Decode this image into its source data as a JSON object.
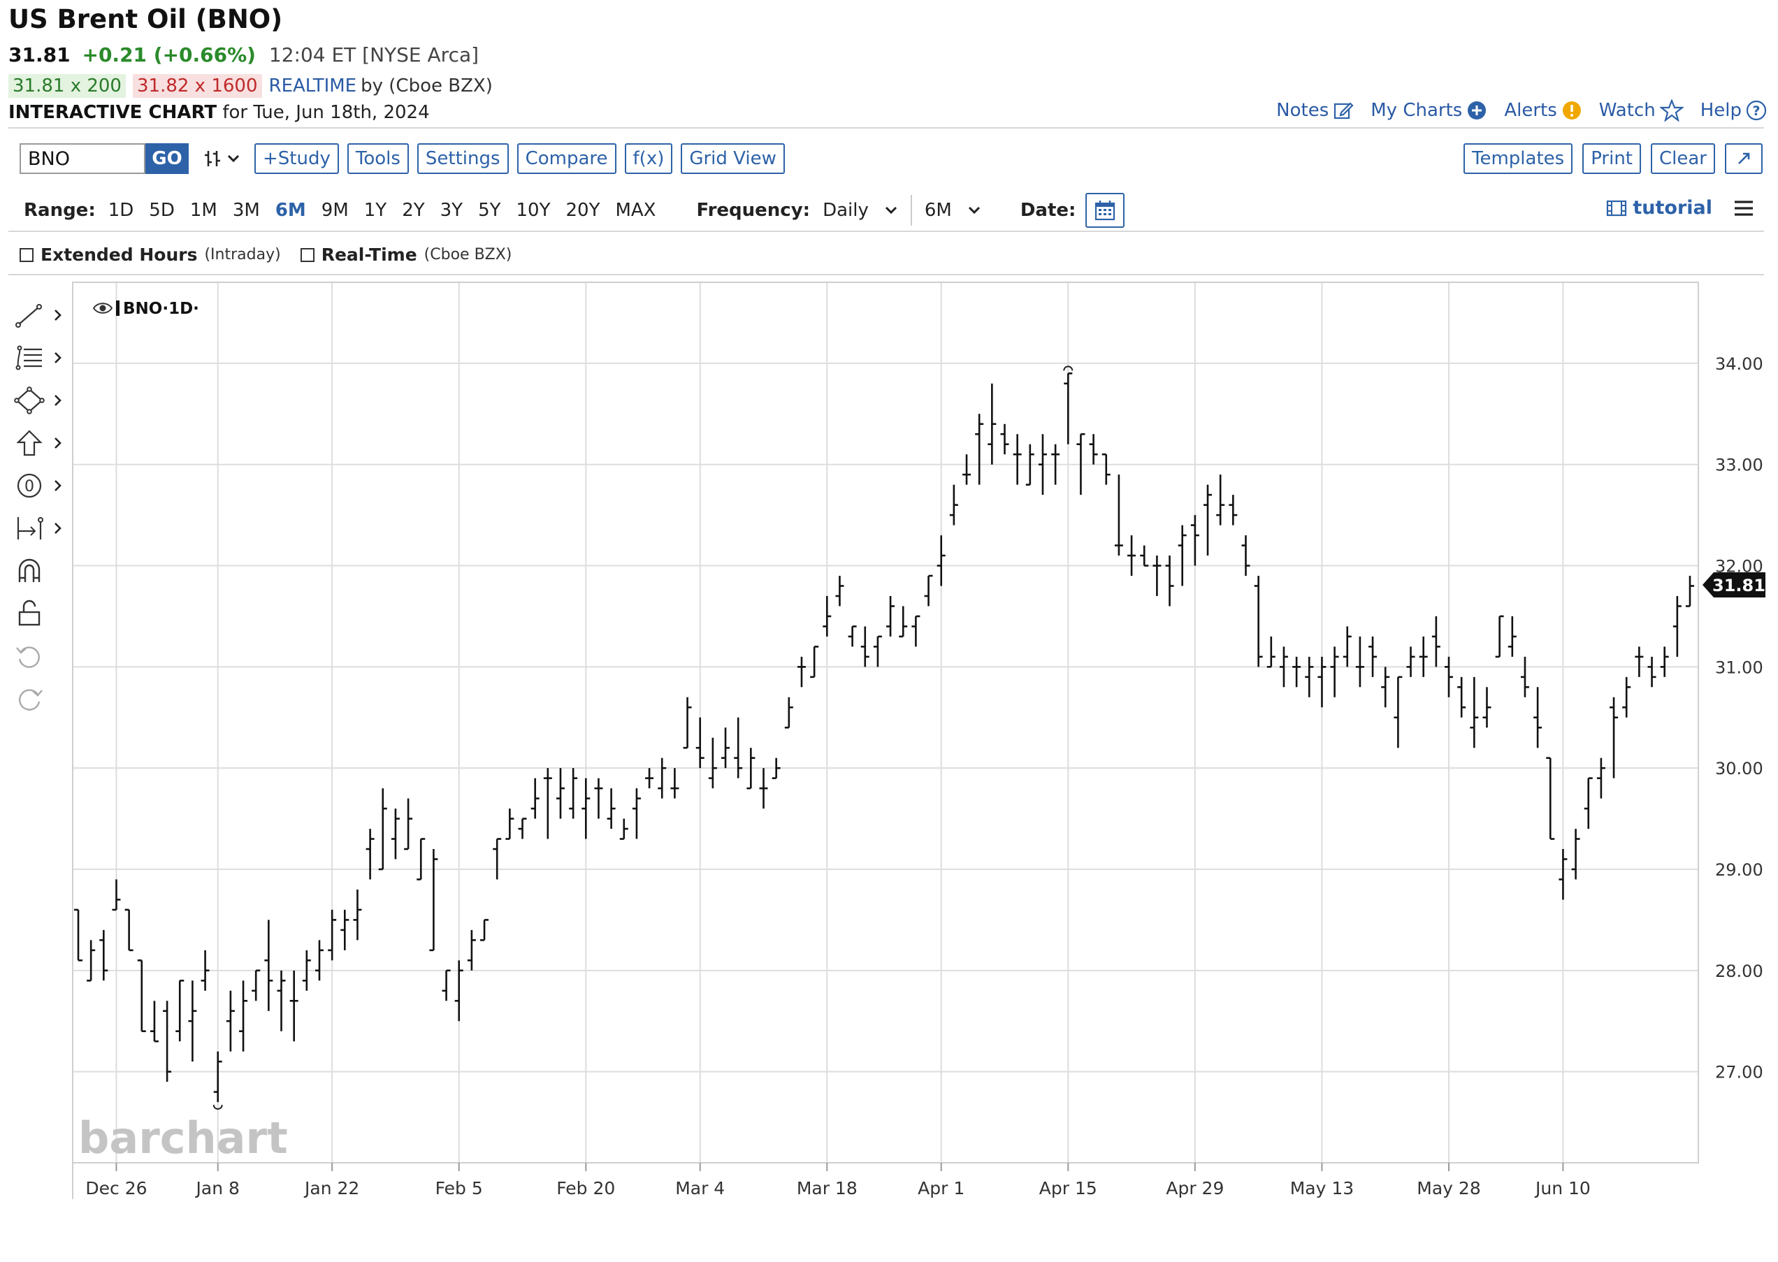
{
  "header": {
    "title": "US Brent Oil (BNO)",
    "last": "31.81",
    "change": "+0.21 (+0.66%)",
    "time": "12:04 ET [NYSE Arca]",
    "bid": "31.81 x 200",
    "ask": "31.82 x 1600",
    "realtime": "REALTIME",
    "source": "by (Cboe BZX)",
    "chart_label": "INTERACTIVE CHART",
    "chart_date": "for Tue, Jun 18th, 2024"
  },
  "toplinks": [
    "Notes",
    "My Charts",
    "Alerts",
    "Watch",
    "Help"
  ],
  "toolbar": {
    "symbol": "BNO",
    "go": "GO",
    "buttons": [
      "+Study",
      "Tools",
      "Settings",
      "Compare",
      "f(x)",
      "Grid View"
    ],
    "right_buttons": [
      "Templates",
      "Print",
      "Clear"
    ]
  },
  "rangebar": {
    "range_label": "Range:",
    "ranges": [
      "1D",
      "5D",
      "1M",
      "3M",
      "6M",
      "9M",
      "1Y",
      "2Y",
      "3Y",
      "5Y",
      "10Y",
      "20Y",
      "MAX"
    ],
    "active_range": "6M",
    "frequency_label": "Frequency:",
    "frequency": "Daily",
    "period": "6M",
    "date_label": "Date:",
    "tutorial": "tutorial"
  },
  "options": {
    "extended": "Extended Hours",
    "extended_note": "(Intraday)",
    "realtime": "Real-Time",
    "realtime_note": "(Cboe BZX)"
  },
  "chart_data": {
    "type": "ohlc",
    "legend": "BNO·1D·",
    "watermark": "barchart",
    "price_tag": "31.81",
    "last_price": 31.81,
    "ylim": [
      26.1,
      34.8
    ],
    "y_ticks": [
      27.0,
      28.0,
      29.0,
      30.0,
      31.0,
      32.0,
      33.0,
      34.0
    ],
    "x_labels": [
      {
        "label": "Dec 26",
        "index": 3
      },
      {
        "label": "Jan 8",
        "index": 11
      },
      {
        "label": "Jan 22",
        "index": 20
      },
      {
        "label": "Feb 5",
        "index": 30
      },
      {
        "label": "Feb 20",
        "index": 40
      },
      {
        "label": "Mar 4",
        "index": 49
      },
      {
        "label": "Mar 18",
        "index": 59
      },
      {
        "label": "Apr 1",
        "index": 68
      },
      {
        "label": "Apr 15",
        "index": 78
      },
      {
        "label": "Apr 29",
        "index": 88
      },
      {
        "label": "May 13",
        "index": 98
      },
      {
        "label": "May 28",
        "index": 108
      },
      {
        "label": "Jun 10",
        "index": 117
      }
    ],
    "bars": [
      [
        28.6,
        28.6,
        28.1,
        28.1
      ],
      [
        27.9,
        28.3,
        27.9,
        28.2
      ],
      [
        28.3,
        28.4,
        27.9,
        28.0
      ],
      [
        28.6,
        28.9,
        28.6,
        28.7
      ],
      [
        28.6,
        28.6,
        28.2,
        28.2
      ],
      [
        28.1,
        28.1,
        27.4,
        27.4
      ],
      [
        27.4,
        27.7,
        27.3,
        27.3
      ],
      [
        27.6,
        27.7,
        26.9,
        27.0
      ],
      [
        27.4,
        27.9,
        27.3,
        27.9
      ],
      [
        27.5,
        27.9,
        27.1,
        27.6
      ],
      [
        27.9,
        28.2,
        27.8,
        28.0
      ],
      [
        26.8,
        27.2,
        26.7,
        27.1
      ],
      [
        27.5,
        27.8,
        27.2,
        27.6
      ],
      [
        27.4,
        27.9,
        27.2,
        27.7
      ],
      [
        27.8,
        28.0,
        27.7,
        28.0
      ],
      [
        28.1,
        28.5,
        27.6,
        27.9
      ],
      [
        27.8,
        28.0,
        27.4,
        27.9
      ],
      [
        27.7,
        28.0,
        27.3,
        27.7
      ],
      [
        27.9,
        28.2,
        27.8,
        28.1
      ],
      [
        28.0,
        28.3,
        27.9,
        28.2
      ],
      [
        28.2,
        28.6,
        28.1,
        28.5
      ],
      [
        28.4,
        28.6,
        28.2,
        28.5
      ],
      [
        28.5,
        28.8,
        28.3,
        28.6
      ],
      [
        29.2,
        29.4,
        28.9,
        29.3
      ],
      [
        29.0,
        29.8,
        29.0,
        29.6
      ],
      [
        29.3,
        29.6,
        29.1,
        29.5
      ],
      [
        29.2,
        29.7,
        29.2,
        29.5
      ],
      [
        28.9,
        29.3,
        28.9,
        29.3
      ],
      [
        28.2,
        29.2,
        28.2,
        29.1
      ],
      [
        27.8,
        28.0,
        27.7,
        28.0
      ],
      [
        27.7,
        28.1,
        27.5,
        28.0
      ],
      [
        28.1,
        28.4,
        28.0,
        28.3
      ],
      [
        28.3,
        28.5,
        28.3,
        28.5
      ],
      [
        29.2,
        29.3,
        28.9,
        29.3
      ],
      [
        29.3,
        29.6,
        29.3,
        29.5
      ],
      [
        29.4,
        29.5,
        29.3,
        29.5
      ],
      [
        29.6,
        29.9,
        29.5,
        29.7
      ],
      [
        29.9,
        30.0,
        29.3,
        29.9
      ],
      [
        29.7,
        30.0,
        29.5,
        29.8
      ],
      [
        29.6,
        30.0,
        29.5,
        29.9
      ],
      [
        29.6,
        29.9,
        29.3,
        29.7
      ],
      [
        29.8,
        29.9,
        29.5,
        29.8
      ],
      [
        29.5,
        29.8,
        29.4,
        29.6
      ],
      [
        29.3,
        29.5,
        29.3,
        29.4
      ],
      [
        29.6,
        29.8,
        29.3,
        29.7
      ],
      [
        29.9,
        30.0,
        29.8,
        29.9
      ],
      [
        29.8,
        30.1,
        29.7,
        30.0
      ],
      [
        29.8,
        30.0,
        29.7,
        29.8
      ],
      [
        30.2,
        30.7,
        30.2,
        30.6
      ],
      [
        30.2,
        30.5,
        30.0,
        30.1
      ],
      [
        29.9,
        30.3,
        29.8,
        30.0
      ],
      [
        30.1,
        30.4,
        30.0,
        30.2
      ],
      [
        30.1,
        30.5,
        29.9,
        30.0
      ],
      [
        29.8,
        30.2,
        29.8,
        30.1
      ],
      [
        29.8,
        30.0,
        29.6,
        29.8
      ],
      [
        29.9,
        30.1,
        29.9,
        30.0
      ],
      [
        30.4,
        30.7,
        30.4,
        30.6
      ],
      [
        31.0,
        31.1,
        30.8,
        31.0
      ],
      [
        30.9,
        31.2,
        30.9,
        31.2
      ],
      [
        31.4,
        31.7,
        31.3,
        31.5
      ],
      [
        31.7,
        31.9,
        31.6,
        31.8
      ],
      [
        31.3,
        31.4,
        31.2,
        31.4
      ],
      [
        31.2,
        31.4,
        31.0,
        31.1
      ],
      [
        31.2,
        31.3,
        31.0,
        31.3
      ],
      [
        31.4,
        31.7,
        31.3,
        31.6
      ],
      [
        31.3,
        31.6,
        31.3,
        31.4
      ],
      [
        31.4,
        31.5,
        31.2,
        31.5
      ],
      [
        31.7,
        31.9,
        31.6,
        31.9
      ],
      [
        32.0,
        32.3,
        31.8,
        32.1
      ],
      [
        32.5,
        32.8,
        32.4,
        32.6
      ],
      [
        32.9,
        33.1,
        32.8,
        32.9
      ],
      [
        33.3,
        33.5,
        32.8,
        33.4
      ],
      [
        33.2,
        33.8,
        33.0,
        33.4
      ],
      [
        33.3,
        33.4,
        33.1,
        33.2
      ],
      [
        33.1,
        33.3,
        32.8,
        33.1
      ],
      [
        32.8,
        33.2,
        32.8,
        33.1
      ],
      [
        33.0,
        33.3,
        32.7,
        33.1
      ],
      [
        33.1,
        33.2,
        32.8,
        33.1
      ],
      [
        33.8,
        33.9,
        33.2,
        33.9
      ],
      [
        33.2,
        33.3,
        32.7,
        33.3
      ],
      [
        33.2,
        33.3,
        33.0,
        33.1
      ],
      [
        33.1,
        33.1,
        32.8,
        32.9
      ],
      [
        32.2,
        32.9,
        32.1,
        32.2
      ],
      [
        32.1,
        32.3,
        31.9,
        32.1
      ],
      [
        32.1,
        32.2,
        32.0,
        32.0
      ],
      [
        32.0,
        32.1,
        31.7,
        32.0
      ],
      [
        32.0,
        32.1,
        31.6,
        31.8
      ],
      [
        32.2,
        32.4,
        31.8,
        32.3
      ],
      [
        32.4,
        32.5,
        32.0,
        32.3
      ],
      [
        32.6,
        32.8,
        32.1,
        32.7
      ],
      [
        32.5,
        32.9,
        32.4,
        32.6
      ],
      [
        32.6,
        32.7,
        32.4,
        32.5
      ],
      [
        32.2,
        32.3,
        31.9,
        32.0
      ],
      [
        31.8,
        31.9,
        31.0,
        31.1
      ],
      [
        31.0,
        31.3,
        31.0,
        31.1
      ],
      [
        31.0,
        31.2,
        30.8,
        31.1
      ],
      [
        31.0,
        31.1,
        30.8,
        31.0
      ],
      [
        30.9,
        31.1,
        30.7,
        31.0
      ],
      [
        30.9,
        31.1,
        30.6,
        31.0
      ],
      [
        31.0,
        31.2,
        30.7,
        31.1
      ],
      [
        31.1,
        31.4,
        31.0,
        31.3
      ],
      [
        31.0,
        31.3,
        30.8,
        31.0
      ],
      [
        31.2,
        31.3,
        30.9,
        31.1
      ],
      [
        30.8,
        31.0,
        30.6,
        30.9
      ],
      [
        30.5,
        30.9,
        30.2,
        30.9
      ],
      [
        31.0,
        31.2,
        30.9,
        31.1
      ],
      [
        31.1,
        31.3,
        30.9,
        31.1
      ],
      [
        31.3,
        31.5,
        31.0,
        31.2
      ],
      [
        31.0,
        31.1,
        30.7,
        30.9
      ],
      [
        30.8,
        30.9,
        30.5,
        30.6
      ],
      [
        30.4,
        30.9,
        30.2,
        30.5
      ],
      [
        30.5,
        30.8,
        30.4,
        30.6
      ],
      [
        31.1,
        31.5,
        31.1,
        31.5
      ],
      [
        31.2,
        31.5,
        31.1,
        31.3
      ],
      [
        30.9,
        31.1,
        30.7,
        30.8
      ],
      [
        30.5,
        30.8,
        30.2,
        30.4
      ],
      [
        30.1,
        30.1,
        29.3,
        29.3
      ],
      [
        28.9,
        29.2,
        28.7,
        29.1
      ],
      [
        29.0,
        29.4,
        28.9,
        29.3
      ],
      [
        29.6,
        29.9,
        29.4,
        29.9
      ],
      [
        29.9,
        30.1,
        29.7,
        30.0
      ],
      [
        30.6,
        30.7,
        29.9,
        30.5
      ],
      [
        30.6,
        30.9,
        30.5,
        30.8
      ],
      [
        31.1,
        31.2,
        30.9,
        31.1
      ],
      [
        31.0,
        31.1,
        30.8,
        30.9
      ],
      [
        31.0,
        31.2,
        30.9,
        31.1
      ],
      [
        31.4,
        31.7,
        31.1,
        31.6
      ],
      [
        31.6,
        31.9,
        31.6,
        31.8
      ]
    ]
  },
  "colors": {
    "accent": "#2d62a8",
    "up": "#2a8a2a",
    "down": "#c02a2a",
    "bars": "#111111",
    "grid": "#dddddd"
  }
}
